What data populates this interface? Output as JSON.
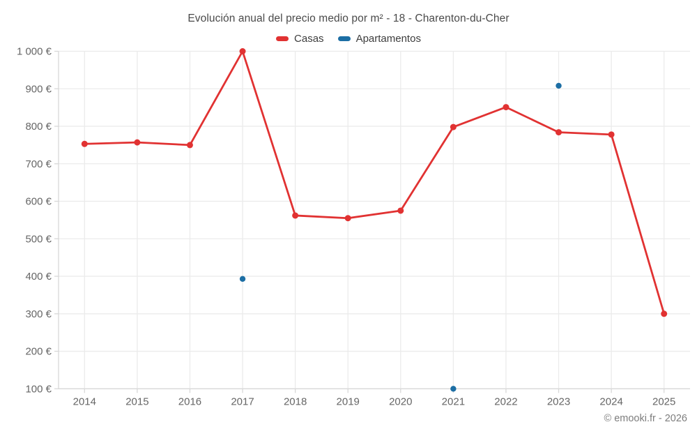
{
  "header": {
    "title": "Evolución anual del precio medio por m² - 18 - Charenton-du-Cher"
  },
  "legend": {
    "items": [
      {
        "label": "Casas",
        "color": "#e13232"
      },
      {
        "label": "Apartamentos",
        "color": "#1c6ea4"
      }
    ]
  },
  "footer": {
    "copyright": "© emooki.fr - 2026"
  },
  "colors": {
    "grid": "#ebebeb",
    "axis": "#d8d8d8",
    "tick": "#d8d8d8",
    "tick_text": "#666666",
    "title_text": "#4a4a4a",
    "legend_text": "#3d3d3d",
    "copyright_text": "#7d7d7d",
    "casas": "#e13232",
    "apartamentos": "#1c6ea4"
  },
  "chart_data": {
    "type": "line",
    "title": "Evolución anual del precio medio por m² - 18 - Charenton-du-Cher",
    "xlabel": "",
    "ylabel": "",
    "categories": [
      2014,
      2015,
      2016,
      2017,
      2018,
      2019,
      2020,
      2021,
      2022,
      2023,
      2024,
      2025
    ],
    "series": [
      {
        "name": "Casas",
        "type": "line",
        "color": "#e13232",
        "values": [
          753,
          757,
          750,
          1000,
          562,
          555,
          575,
          798,
          851,
          784,
          778,
          300
        ]
      },
      {
        "name": "Apartamentos",
        "type": "scatter",
        "color": "#1c6ea4",
        "values": [
          null,
          null,
          null,
          393,
          null,
          null,
          null,
          100,
          null,
          908,
          null,
          null
        ]
      }
    ],
    "ylim": [
      100,
      1000
    ],
    "yticks": [
      100,
      200,
      300,
      400,
      500,
      600,
      700,
      800,
      900,
      1000
    ],
    "ytick_labels": [
      "100 €",
      "200 €",
      "300 €",
      "400 €",
      "500 €",
      "600 €",
      "700 €",
      "800 €",
      "900 €",
      "1 000 €"
    ],
    "grid": true,
    "legend_position": "top",
    "currency": "€"
  }
}
